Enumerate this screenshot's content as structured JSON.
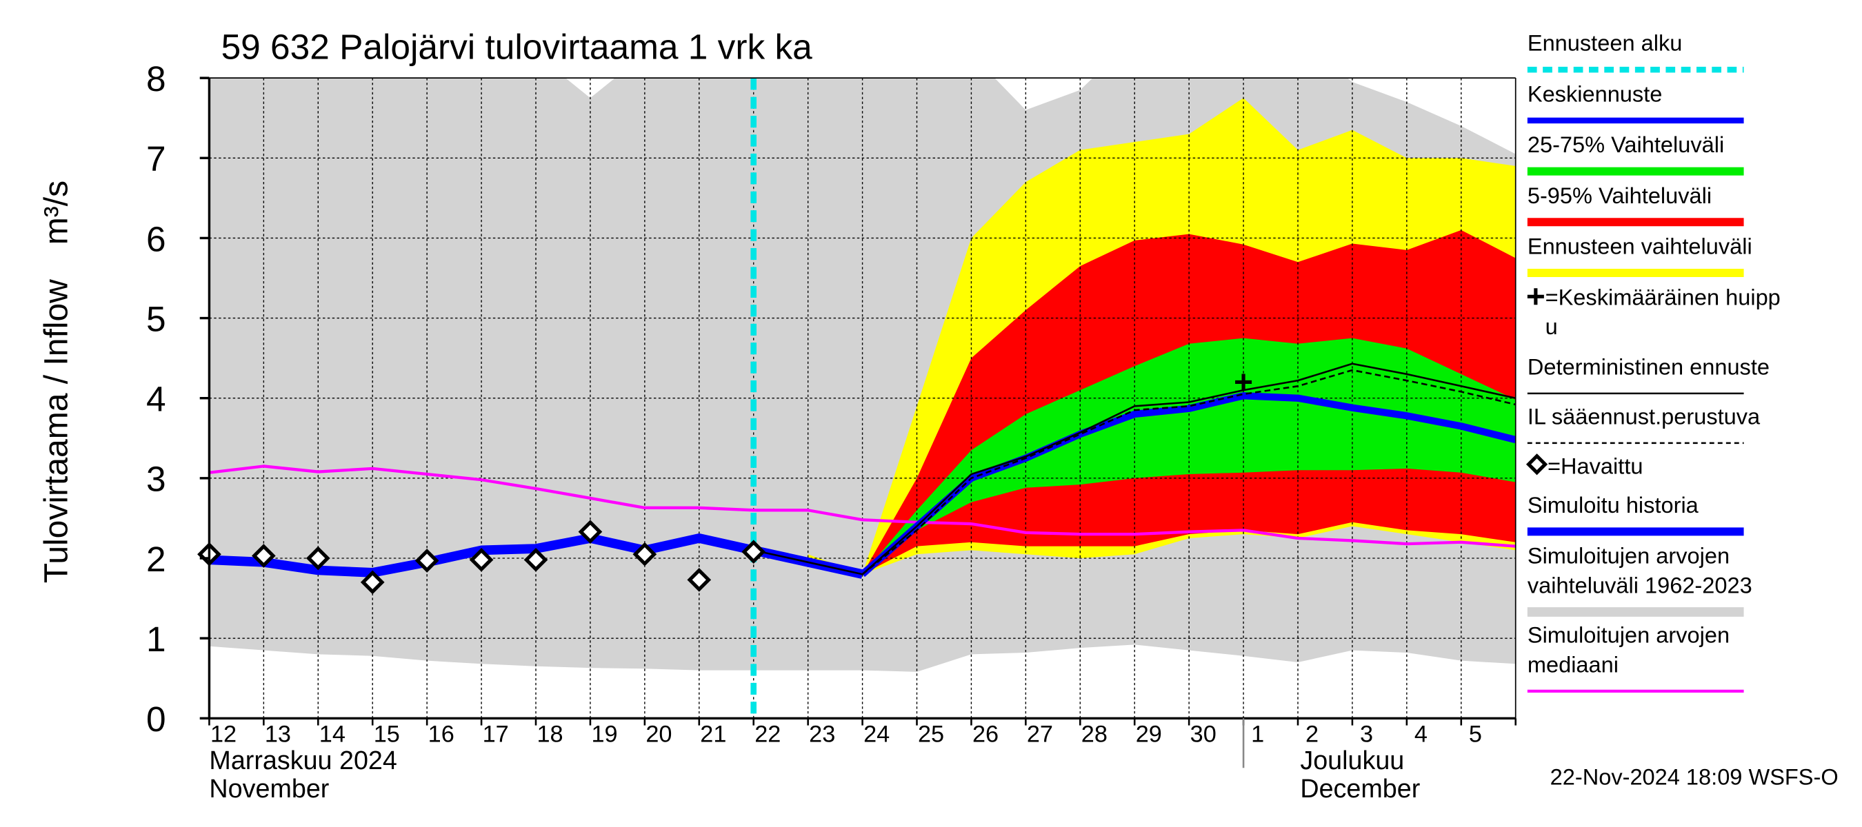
{
  "chart_data": {
    "type": "line",
    "title": "59 632 Palojärvi tulovirtaama 1 vrk ka",
    "y_label": "Tulovirtaama / Inflow",
    "y_unit": "m³/s",
    "categories": [
      "12",
      "13",
      "14",
      "15",
      "16",
      "17",
      "18",
      "19",
      "20",
      "21",
      "22",
      "23",
      "24",
      "25",
      "26",
      "27",
      "28",
      "29",
      "30",
      "1",
      "2",
      "3",
      "4",
      "5",
      null
    ],
    "ylim": [
      0,
      8
    ],
    "yticks": [
      0,
      1,
      2,
      3,
      4,
      5,
      6,
      7,
      8
    ],
    "grid": true,
    "month_labels": [
      {
        "start": 0,
        "lines": [
          "Marraskuu 2024",
          "November"
        ]
      },
      {
        "start": 19,
        "lines": [
          "Joulukuu",
          "December"
        ]
      }
    ],
    "forecast_start": 10,
    "timestamp": "22-Nov-2024 18:09 WSFS-O",
    "bands": [
      {
        "color": "#d3d3d3",
        "upper": [
          8.5,
          8.5,
          8.5,
          8.5,
          8.5,
          8.5,
          8.3,
          7.75,
          8.3,
          8.5,
          8.5,
          8.5,
          8.5,
          8.5,
          8.3,
          7.6,
          7.85,
          8.5,
          8.5,
          8.5,
          8.5,
          7.95,
          7.7,
          7.4,
          7.05
        ],
        "lower": [
          0.9,
          0.85,
          0.8,
          0.78,
          0.72,
          0.68,
          0.65,
          0.63,
          0.62,
          0.6,
          0.6,
          0.6,
          0.6,
          0.58,
          0.8,
          0.82,
          0.88,
          0.92,
          0.85,
          0.78,
          0.7,
          0.85,
          0.82,
          0.72,
          0.68
        ]
      },
      {
        "color": "#ffff00",
        "upper": [
          null,
          null,
          null,
          null,
          null,
          null,
          null,
          null,
          null,
          null,
          null,
          2.05,
          1.8,
          3.9,
          6.0,
          6.7,
          7.1,
          7.2,
          7.3,
          7.75,
          7.1,
          7.35,
          7.0,
          7.0,
          6.9
        ],
        "lower": [
          null,
          null,
          null,
          null,
          null,
          null,
          null,
          null,
          null,
          null,
          null,
          1.95,
          1.8,
          2.05,
          2.1,
          2.05,
          2.0,
          2.05,
          2.25,
          2.3,
          2.25,
          2.4,
          2.3,
          2.2,
          2.1
        ]
      },
      {
        "color": "#ff0000",
        "upper": [
          null,
          null,
          null,
          null,
          null,
          null,
          null,
          null,
          null,
          null,
          null,
          null,
          1.8,
          3.0,
          4.5,
          5.1,
          5.65,
          5.97,
          6.05,
          5.92,
          5.7,
          5.93,
          5.85,
          6.1,
          5.75
        ],
        "lower": [
          null,
          null,
          null,
          null,
          null,
          null,
          null,
          null,
          null,
          null,
          null,
          null,
          1.8,
          2.15,
          2.2,
          2.15,
          2.15,
          2.15,
          2.3,
          2.35,
          2.3,
          2.45,
          2.35,
          2.3,
          2.2
        ]
      },
      {
        "color": "#00ee00",
        "upper": [
          null,
          null,
          null,
          null,
          null,
          null,
          null,
          null,
          null,
          null,
          null,
          null,
          1.8,
          2.6,
          3.35,
          3.8,
          4.1,
          4.4,
          4.68,
          4.75,
          4.68,
          4.75,
          4.62,
          4.3,
          3.98
        ],
        "lower": [
          null,
          null,
          null,
          null,
          null,
          null,
          null,
          null,
          null,
          null,
          null,
          null,
          1.8,
          2.35,
          2.7,
          2.88,
          2.92,
          3.0,
          3.05,
          3.07,
          3.1,
          3.1,
          3.12,
          3.07,
          2.95
        ]
      }
    ],
    "lines": [
      {
        "color": "#ff00ff",
        "width": 2.5,
        "dash": false,
        "values": [
          3.07,
          3.15,
          3.08,
          3.12,
          3.05,
          2.98,
          2.87,
          2.75,
          2.63,
          2.63,
          2.6,
          2.6,
          2.48,
          2.45,
          2.43,
          2.32,
          2.3,
          2.3,
          2.33,
          2.35,
          2.25,
          2.22,
          2.18,
          2.2,
          2.15
        ]
      },
      {
        "color": "#0000ff",
        "width": 8,
        "dash": false,
        "values": [
          1.98,
          1.95,
          1.85,
          1.82,
          1.95,
          2.1,
          2.12,
          2.25,
          2.1,
          2.25,
          2.1,
          1.95,
          1.8,
          null,
          null,
          null,
          null,
          null,
          null,
          null,
          null,
          null,
          null,
          null,
          null
        ]
      },
      {
        "color": "#0000ff",
        "width": 6,
        "dash": false,
        "values": [
          null,
          null,
          null,
          null,
          null,
          null,
          null,
          null,
          null,
          null,
          null,
          null,
          1.8,
          2.4,
          3.0,
          3.25,
          3.55,
          3.8,
          3.87,
          4.03,
          4.0,
          3.88,
          3.78,
          3.65,
          3.48
        ]
      },
      {
        "color": "#000000",
        "width": 1.5,
        "dash": false,
        "values": [
          null,
          null,
          null,
          null,
          null,
          null,
          null,
          null,
          null,
          null,
          2.1,
          1.95,
          1.8,
          2.4,
          3.05,
          3.27,
          3.57,
          3.9,
          3.95,
          4.1,
          4.22,
          4.43,
          4.3,
          4.15,
          4.0
        ]
      },
      {
        "color": "#000000",
        "width": 1.5,
        "dash": true,
        "values": [
          null,
          null,
          null,
          null,
          null,
          null,
          null,
          null,
          null,
          null,
          null,
          null,
          1.8,
          2.35,
          3.0,
          3.25,
          3.55,
          3.85,
          3.9,
          4.05,
          4.15,
          4.35,
          4.22,
          4.08,
          3.92
        ]
      }
    ],
    "observed": [
      2.05,
      2.03,
      2.0,
      1.7,
      1.97,
      1.98,
      1.98,
      2.33,
      2.05,
      1.73,
      2.08,
      null,
      null,
      null,
      null,
      null,
      null,
      null,
      null,
      null,
      null,
      null,
      null,
      null,
      null
    ],
    "peak": {
      "index": 19,
      "value": 4.2
    },
    "legend": [
      {
        "lines": [
          "Ennusteen alku"
        ],
        "symbol": "dash-cyan"
      },
      {
        "lines": [
          "Keskiennuste"
        ],
        "symbol": "blue"
      },
      {
        "lines": [
          "25-75% Vaihteluväli"
        ],
        "symbol": "green"
      },
      {
        "lines": [
          "5-95% Vaihteluväli"
        ],
        "symbol": "red"
      },
      {
        "lines": [
          "Ennusteen vaihteluväli"
        ],
        "symbol": "yellow"
      },
      {
        "lines": [
          "=Keskimääräinen huipp",
          "u"
        ],
        "symbol": "plus"
      },
      {
        "lines": [
          "Deterministinen ennuste"
        ],
        "symbol": "black"
      },
      {
        "lines": [
          "IL sääennust.perustuva"
        ],
        "symbol": "black-dash"
      },
      {
        "lines": [
          "=Havaittu"
        ],
        "symbol": "diamond"
      },
      {
        "lines": [
          "Simuloitu historia"
        ],
        "symbol": "blue-thick"
      },
      {
        "lines": [
          "Simuloitujen arvojen",
          "vaihteluväli 1962-2023"
        ],
        "symbol": "grey"
      },
      {
        "lines": [
          "Simuloitujen arvojen",
          "mediaani"
        ],
        "symbol": "magenta"
      }
    ]
  }
}
